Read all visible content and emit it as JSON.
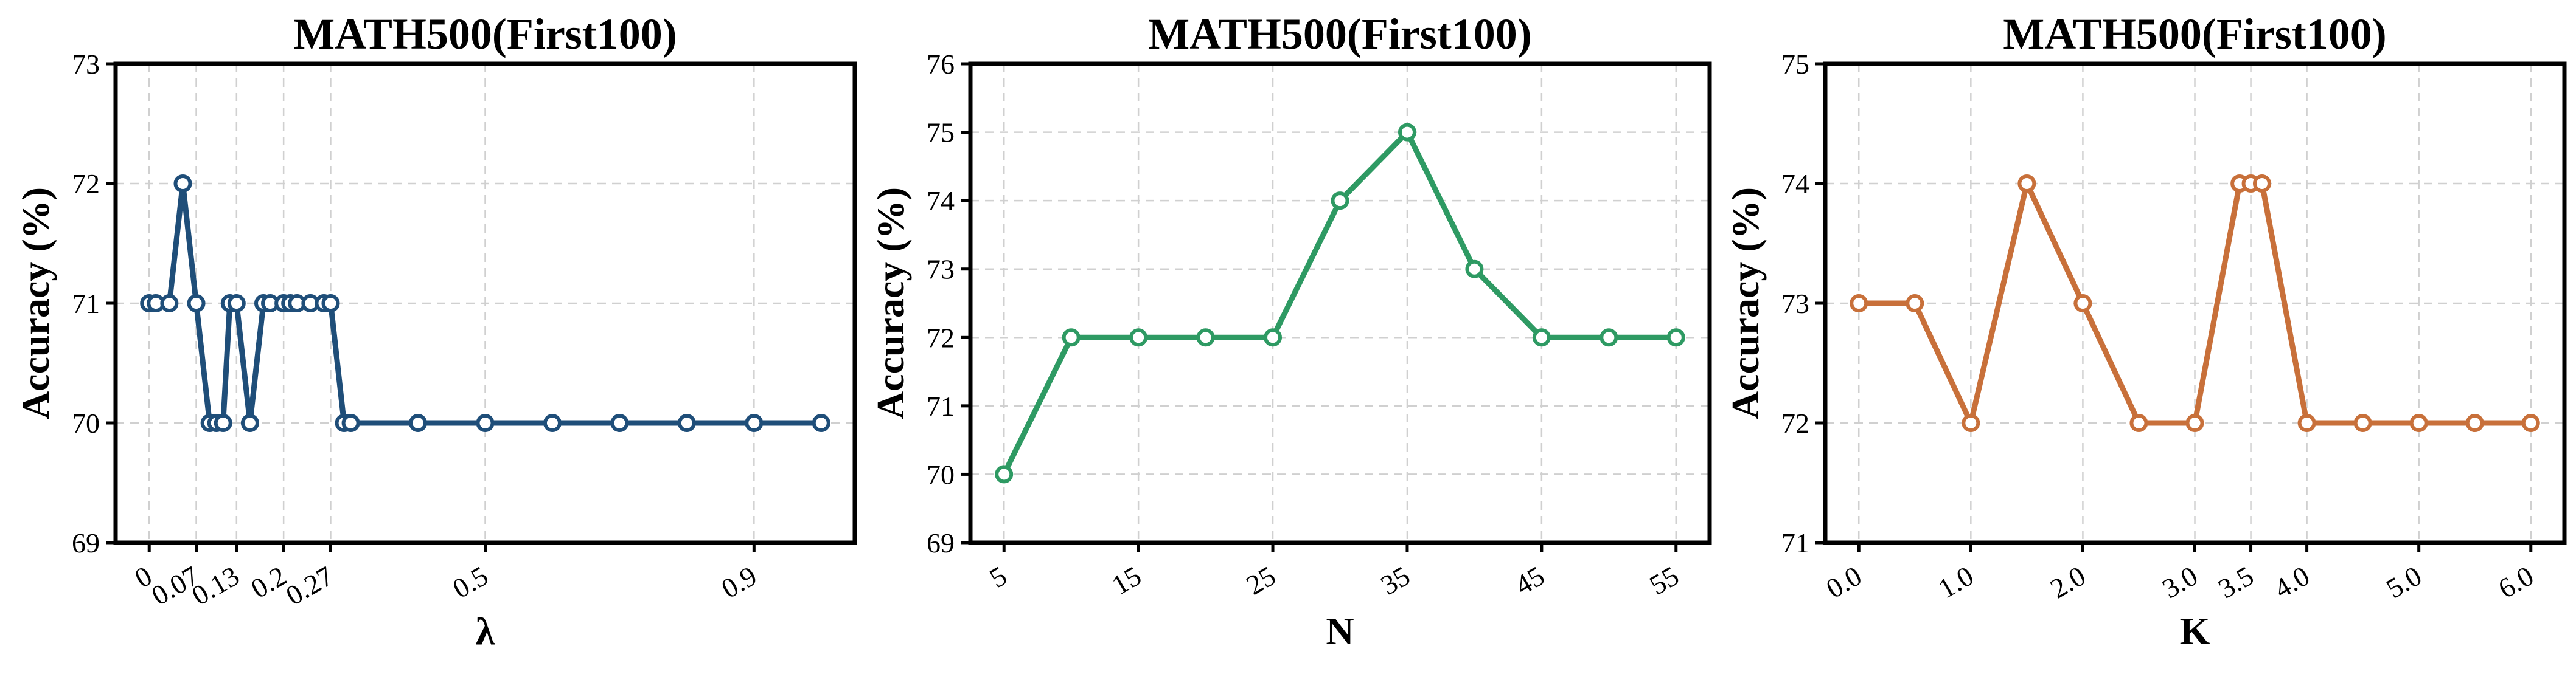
{
  "chart_data": [
    {
      "type": "line",
      "title": "MATH500(First100)",
      "xlabel": "λ",
      "ylabel": "Accuracy (%)",
      "ylim": [
        69,
        73
      ],
      "yticks": [
        69,
        70,
        71,
        72,
        73
      ],
      "xlim": [
        -0.05,
        1.05
      ],
      "xticks": [
        0,
        0.07,
        0.13,
        0.2,
        0.27,
        0.5,
        0.9
      ],
      "xtick_labels": [
        "0",
        "0.07",
        "0.13",
        "0.2",
        "0.27",
        "0.5",
        "0.9"
      ],
      "grid": true,
      "color": "#1f4e79",
      "x": [
        0,
        0.01,
        0.03,
        0.05,
        0.07,
        0.09,
        0.1,
        0.11,
        0.12,
        0.13,
        0.15,
        0.17,
        0.18,
        0.2,
        0.21,
        0.22,
        0.24,
        0.26,
        0.27,
        0.29,
        0.3,
        0.4,
        0.5,
        0.6,
        0.7,
        0.8,
        0.9,
        1.0
      ],
      "y": [
        71,
        71,
        71,
        72,
        71,
        70,
        70,
        70,
        71,
        71,
        70,
        71,
        71,
        71,
        71,
        71,
        71,
        71,
        71,
        70,
        70,
        70,
        70,
        70,
        70,
        70,
        70,
        70
      ]
    },
    {
      "type": "line",
      "title": "MATH500(First100)",
      "xlabel": "N",
      "ylabel": "Accuracy (%)",
      "ylim": [
        69,
        76
      ],
      "yticks": [
        69,
        70,
        71,
        72,
        73,
        74,
        75,
        76
      ],
      "xlim": [
        2.5,
        57.5
      ],
      "xticks": [
        5,
        15,
        25,
        35,
        45,
        55
      ],
      "xtick_labels": [
        "5",
        "15",
        "25",
        "35",
        "45",
        "55"
      ],
      "grid": true,
      "color": "#2e9a63",
      "x": [
        5,
        10,
        15,
        20,
        25,
        30,
        35,
        40,
        45,
        50,
        55
      ],
      "y": [
        70,
        72,
        72,
        72,
        72,
        74,
        75,
        73,
        72,
        72,
        72
      ]
    },
    {
      "type": "line",
      "title": "MATH500(First100)",
      "xlabel": "K",
      "ylabel": "Accuracy (%)",
      "ylim": [
        71,
        75
      ],
      "yticks": [
        71,
        72,
        73,
        74,
        75
      ],
      "xlim": [
        -0.3,
        6.3
      ],
      "xticks": [
        0,
        1,
        2,
        3,
        3.5,
        4,
        5,
        6
      ],
      "xtick_labels": [
        "0.0",
        "1.0",
        "2.0",
        "3.0",
        "3.5",
        "4.0",
        "5.0",
        "6.0"
      ],
      "grid": true,
      "color": "#c8703a",
      "x": [
        0,
        0.5,
        1.0,
        1.5,
        2.0,
        2.5,
        3.0,
        3.4,
        3.5,
        3.6,
        4.0,
        4.5,
        5.0,
        5.5,
        6.0
      ],
      "y": [
        73,
        73,
        72,
        74,
        73,
        72,
        72,
        74,
        74,
        74,
        72,
        72,
        72,
        72,
        72
      ]
    }
  ]
}
